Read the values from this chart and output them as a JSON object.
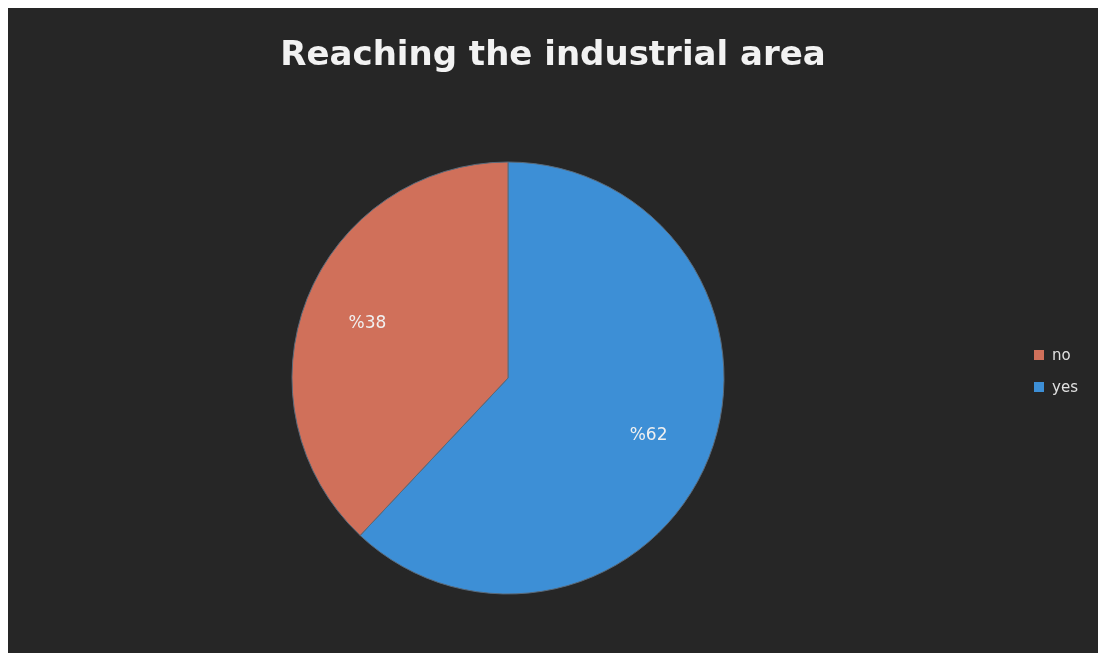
{
  "chart_data": {
    "type": "pie",
    "title": "Reaching the industrial area",
    "categories": [
      "yes",
      "no"
    ],
    "values": [
      62,
      38
    ],
    "colors": [
      "#3d8fd6",
      "#d0705a"
    ],
    "value_labels": [
      "%62",
      "%38"
    ],
    "legend": "right"
  }
}
